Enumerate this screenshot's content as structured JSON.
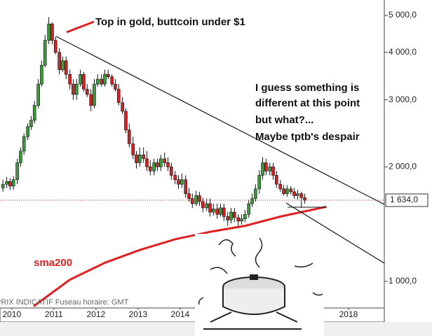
{
  "chart_data": {
    "type": "candlestick",
    "log_scale": true,
    "xlim": [
      2010.22,
      2019.35
    ],
    "xticks": [
      {
        "value": 2010.5,
        "label": "2010"
      },
      {
        "value": 2011.5,
        "label": "2011"
      },
      {
        "value": 2012.5,
        "label": "2012"
      },
      {
        "value": 2013.5,
        "label": "2013"
      },
      {
        "value": 2014.5,
        "label": "2014"
      },
      {
        "value": 2018.5,
        "label": "2018"
      }
    ],
    "ylim": [
      851,
      5490
    ],
    "yticks": [
      {
        "value": 1000,
        "label": "1 000,0"
      },
      {
        "value": 2000,
        "label": "2 000,0"
      },
      {
        "value": 3000,
        "label": "3 000,0"
      },
      {
        "value": 4000,
        "label": "4 000,0"
      },
      {
        "value": 5000,
        "label": "5 000,0"
      }
    ],
    "up_color": "#3c9a3c",
    "down_color": "#d02424",
    "x": [
      2010.29,
      2010.38,
      2010.46,
      2010.54,
      2010.63,
      2010.71,
      2010.79,
      2010.88,
      2010.96,
      2011.04,
      2011.13,
      2011.21,
      2011.29,
      2011.38,
      2011.46,
      2011.54,
      2011.63,
      2011.71,
      2011.79,
      2011.88,
      2011.96,
      2012.04,
      2012.13,
      2012.21,
      2012.29,
      2012.38,
      2012.46,
      2012.54,
      2012.63,
      2012.71,
      2012.79,
      2012.88,
      2012.96,
      2013.04,
      2013.13,
      2013.21,
      2013.29,
      2013.38,
      2013.46,
      2013.54,
      2013.63,
      2013.71,
      2013.79,
      2013.88,
      2013.96,
      2014.04,
      2014.13,
      2014.21,
      2014.29,
      2014.38,
      2014.46,
      2014.54,
      2014.63,
      2014.71,
      2014.79,
      2014.88,
      2014.96,
      2015.04,
      2015.13,
      2015.21,
      2015.29,
      2015.38,
      2015.46,
      2015.54,
      2015.63,
      2015.71,
      2015.79,
      2015.88,
      2015.96,
      2016.04,
      2016.13,
      2016.21,
      2016.29,
      2016.38,
      2016.46,
      2016.54,
      2016.63,
      2016.71,
      2016.79,
      2016.88,
      2016.96,
      2017.04,
      2017.13,
      2017.21,
      2017.29,
      2017.38,
      2017.46
    ],
    "open": [
      1760,
      1800,
      1830,
      1780,
      1850,
      2050,
      2200,
      2400,
      2550,
      2650,
      2900,
      3300,
      3700,
      4300,
      4750,
      4300,
      4000,
      3600,
      3800,
      3500,
      3300,
      3100,
      3300,
      3500,
      3200,
      3100,
      2900,
      3300,
      3400,
      3300,
      3500,
      3450,
      3300,
      3200,
      2950,
      2800,
      2500,
      2300,
      2150,
      2050,
      2150,
      2100,
      2000,
      1950,
      2050,
      2000,
      2100,
      2050,
      2000,
      1900,
      1850,
      1800,
      1850,
      1700,
      1650,
      1600,
      1680,
      1620,
      1560,
      1600,
      1520,
      1550,
      1500,
      1560,
      1480,
      1450,
      1520,
      1470,
      1440,
      1460,
      1500,
      1600,
      1650,
      1750,
      1900,
      2050,
      1950,
      2000,
      1900,
      1800,
      1750,
      1700,
      1750,
      1720,
      1680,
      1700,
      1660
    ],
    "high": [
      1850,
      1880,
      1870,
      1890,
      2100,
      2250,
      2450,
      2600,
      2720,
      2980,
      3400,
      3800,
      4450,
      4950,
      4800,
      4400,
      4100,
      3900,
      3900,
      3600,
      3400,
      3400,
      3600,
      3550,
      3300,
      3200,
      3400,
      3500,
      3500,
      3600,
      3600,
      3500,
      3400,
      3300,
      3050,
      2850,
      2600,
      2400,
      2200,
      2250,
      2250,
      2200,
      2080,
      2100,
      2100,
      2150,
      2180,
      2120,
      2050,
      1950,
      1900,
      1920,
      1900,
      1760,
      1700,
      1730,
      1720,
      1660,
      1650,
      1650,
      1600,
      1600,
      1600,
      1600,
      1520,
      1560,
      1560,
      1500,
      1500,
      1540,
      1640,
      1700,
      1800,
      1960,
      2120,
      2100,
      2050,
      2050,
      1950,
      1850,
      1790,
      1790,
      1780,
      1760,
      1740,
      1720,
      1700
    ],
    "low": [
      1720,
      1760,
      1740,
      1740,
      1800,
      2000,
      2150,
      2350,
      2500,
      2600,
      2850,
      3250,
      3650,
      4200,
      4200,
      3950,
      3500,
      3550,
      3400,
      3200,
      3000,
      3000,
      3250,
      3150,
      3050,
      2800,
      2850,
      3250,
      3250,
      3250,
      3400,
      3250,
      3150,
      2900,
      2750,
      2450,
      2250,
      2100,
      1980,
      2000,
      2050,
      1950,
      1900,
      1900,
      1950,
      1950,
      2000,
      1950,
      1850,
      1800,
      1750,
      1760,
      1660,
      1620,
      1560,
      1580,
      1580,
      1520,
      1530,
      1480,
      1490,
      1460,
      1480,
      1440,
      1400,
      1420,
      1430,
      1400,
      1410,
      1430,
      1470,
      1570,
      1620,
      1700,
      1850,
      1900,
      1900,
      1850,
      1760,
      1720,
      1680,
      1670,
      1690,
      1650,
      1640,
      1560,
      1600
    ],
    "close": [
      1800,
      1830,
      1780,
      1850,
      2050,
      2200,
      2400,
      2550,
      2650,
      2900,
      3300,
      3700,
      4300,
      4750,
      4300,
      4000,
      3600,
      3800,
      3500,
      3300,
      3100,
      3300,
      3500,
      3200,
      3100,
      2900,
      3300,
      3400,
      3300,
      3500,
      3450,
      3300,
      3200,
      2950,
      2800,
      2500,
      2300,
      2150,
      2050,
      2150,
      2100,
      2000,
      1950,
      2050,
      2000,
      2100,
      2050,
      2000,
      1900,
      1850,
      1800,
      1850,
      1700,
      1650,
      1600,
      1680,
      1620,
      1560,
      1600,
      1520,
      1550,
      1500,
      1560,
      1480,
      1450,
      1520,
      1470,
      1440,
      1460,
      1500,
      1600,
      1650,
      1750,
      1900,
      2050,
      1950,
      2000,
      1900,
      1800,
      1750,
      1700,
      1750,
      1720,
      1680,
      1700,
      1660,
      1634
    ],
    "sma": {
      "name": "sma200",
      "color": "#e02020",
      "x": [
        2011.02,
        2011.88,
        2012.72,
        2013.55,
        2014.38,
        2015.22,
        2016.05,
        2016.88,
        2017.97
      ],
      "values": [
        860,
        1010,
        1120,
        1210,
        1290,
        1350,
        1400,
        1480,
        1570
      ]
    },
    "last_price": {
      "value": 1634,
      "label": "1 634,0",
      "color": "#cc2222"
    },
    "annotations": [
      "Top in gold, buttcoin under $1",
      "I guess something is",
      "different at this point",
      "but what?...",
      "Maybe tptb's despair"
    ],
    "source_note": "PRIX INDICATIF   Fuseau horaire: GMT"
  }
}
